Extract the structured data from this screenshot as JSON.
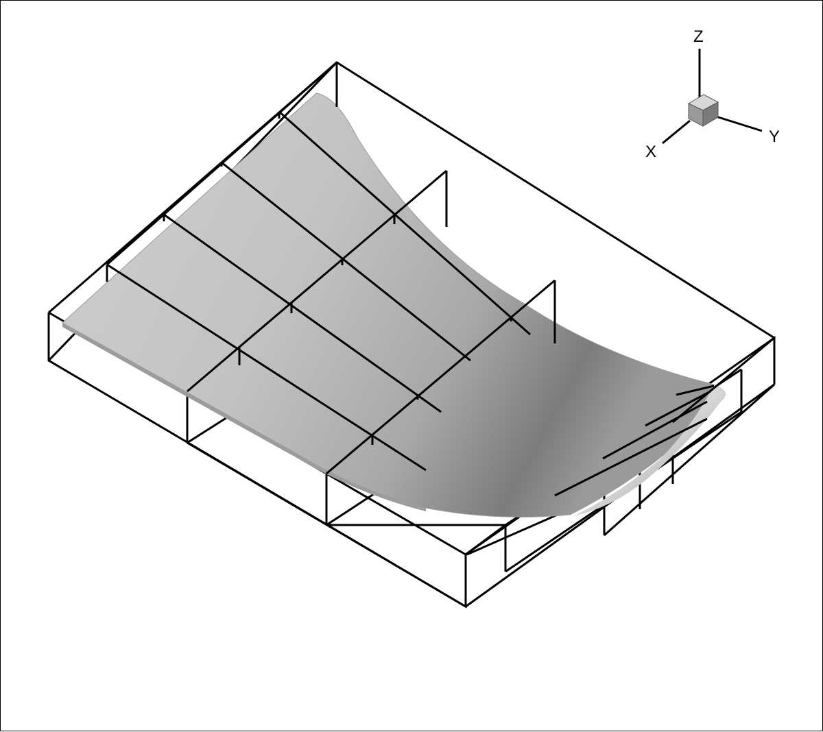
{
  "axis_triad": {
    "labels": {
      "z": "Z",
      "y": "Y",
      "x": "X"
    }
  },
  "colors": {
    "background": "#ffffff",
    "frame": "#000000",
    "surface_light": "#d4d4d4",
    "surface_mid": "#bdbdbd",
    "surface_dark": "#6e6e6e",
    "cube_top": "#d8d8d8",
    "cube_left": "#9a9a9a",
    "cube_right": "#7a7a7a"
  }
}
